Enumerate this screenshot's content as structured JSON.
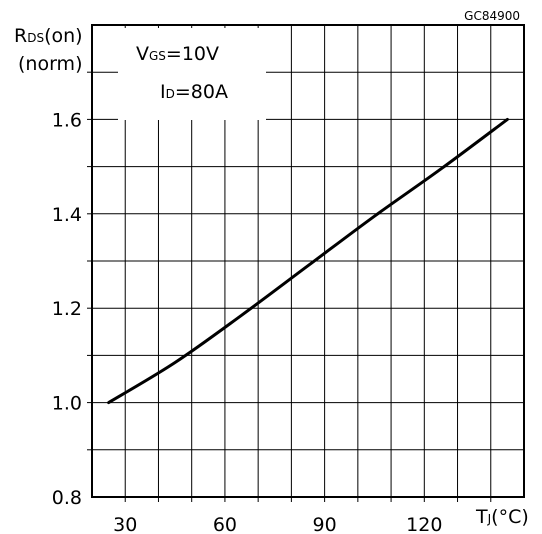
{
  "chart_data": {
    "type": "line",
    "code": "GC84900",
    "ylabel_main": "R",
    "ylabel_sub": "DS",
    "ylabel_tail": "(on)",
    "ylabel_unit": "(norm)",
    "xlabel_main": "T",
    "xlabel_sub": "J",
    "xlabel_unit": "(°C)",
    "conditions": [
      {
        "main": "V",
        "sub": "GS",
        "tail": "=10V"
      },
      {
        "main": "I",
        "sub": "D",
        "tail": "=80A"
      }
    ],
    "xlim": [
      20,
      150
    ],
    "ylim": [
      0.8,
      1.8
    ],
    "x_ticks": [
      "30",
      "60",
      "90",
      "120"
    ],
    "y_ticks": [
      "0.8",
      "1.0",
      "1.2",
      "1.4",
      "1.6"
    ],
    "grid": true,
    "series": [
      {
        "x": [
          25,
          45,
          65,
          85,
          105,
          125,
          145
        ],
        "y": [
          1.0,
          1.085,
          1.185,
          1.29,
          1.395,
          1.495,
          1.6
        ]
      }
    ]
  }
}
